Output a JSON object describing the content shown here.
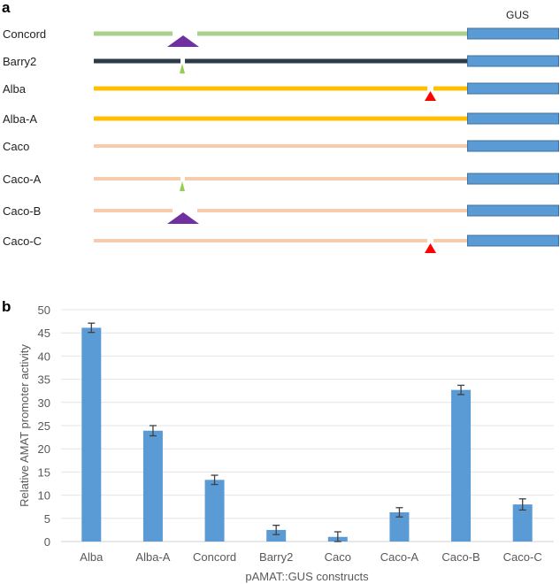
{
  "panel_a": {
    "label": "a",
    "gus_label": "GUS",
    "constructs": [
      {
        "name": "Concord",
        "color": "#a9d18e",
        "feature": "large-insertion"
      },
      {
        "name": "Barry2",
        "color": "#2e3a4a",
        "feature": "small-insertion"
      },
      {
        "name": "Alba",
        "color": "#ffc000",
        "feature": "proximal-insertion"
      },
      {
        "name": "Alba-A",
        "color": "#ffc000",
        "feature": "none"
      },
      {
        "name": "Caco",
        "color": "#f8cbad",
        "feature": "none"
      },
      {
        "name": "Caco-A",
        "color": "#f8cbad",
        "feature": "small-insertion"
      },
      {
        "name": "Caco-B",
        "color": "#f8cbad",
        "feature": "large-insertion"
      },
      {
        "name": "Caco-C",
        "color": "#f8cbad",
        "feature": "proximal-insertion"
      }
    ],
    "colors": {
      "gus": "#5b9bd5",
      "gus_border": "#41719c",
      "large": "#7030a0",
      "small": "#92d050",
      "proximal": "#ff0000"
    }
  },
  "chart_data": {
    "panel_label": "b",
    "type": "bar",
    "title": "",
    "xlabel": "pAMAT::GUS  constructs",
    "ylabel": "Relative  AMAT  promoter  activity",
    "categories": [
      "Alba",
      "Alba-A",
      "Concord",
      "Barry2",
      "Caco",
      "Caco-A",
      "Caco-B",
      "Caco-C"
    ],
    "values": [
      46.1,
      23.9,
      13.3,
      2.5,
      1.0,
      6.3,
      32.7,
      8.0
    ],
    "errors": [
      1.0,
      1.1,
      1.0,
      1.0,
      1.1,
      1.0,
      1.0,
      1.2
    ],
    "ylim": [
      0,
      50
    ],
    "yticks": [
      "0",
      "5",
      "10",
      "15",
      "20",
      "25",
      "30",
      "35",
      "40",
      "45",
      "50"
    ],
    "grid": true,
    "bar_color": "#5b9bd5"
  }
}
